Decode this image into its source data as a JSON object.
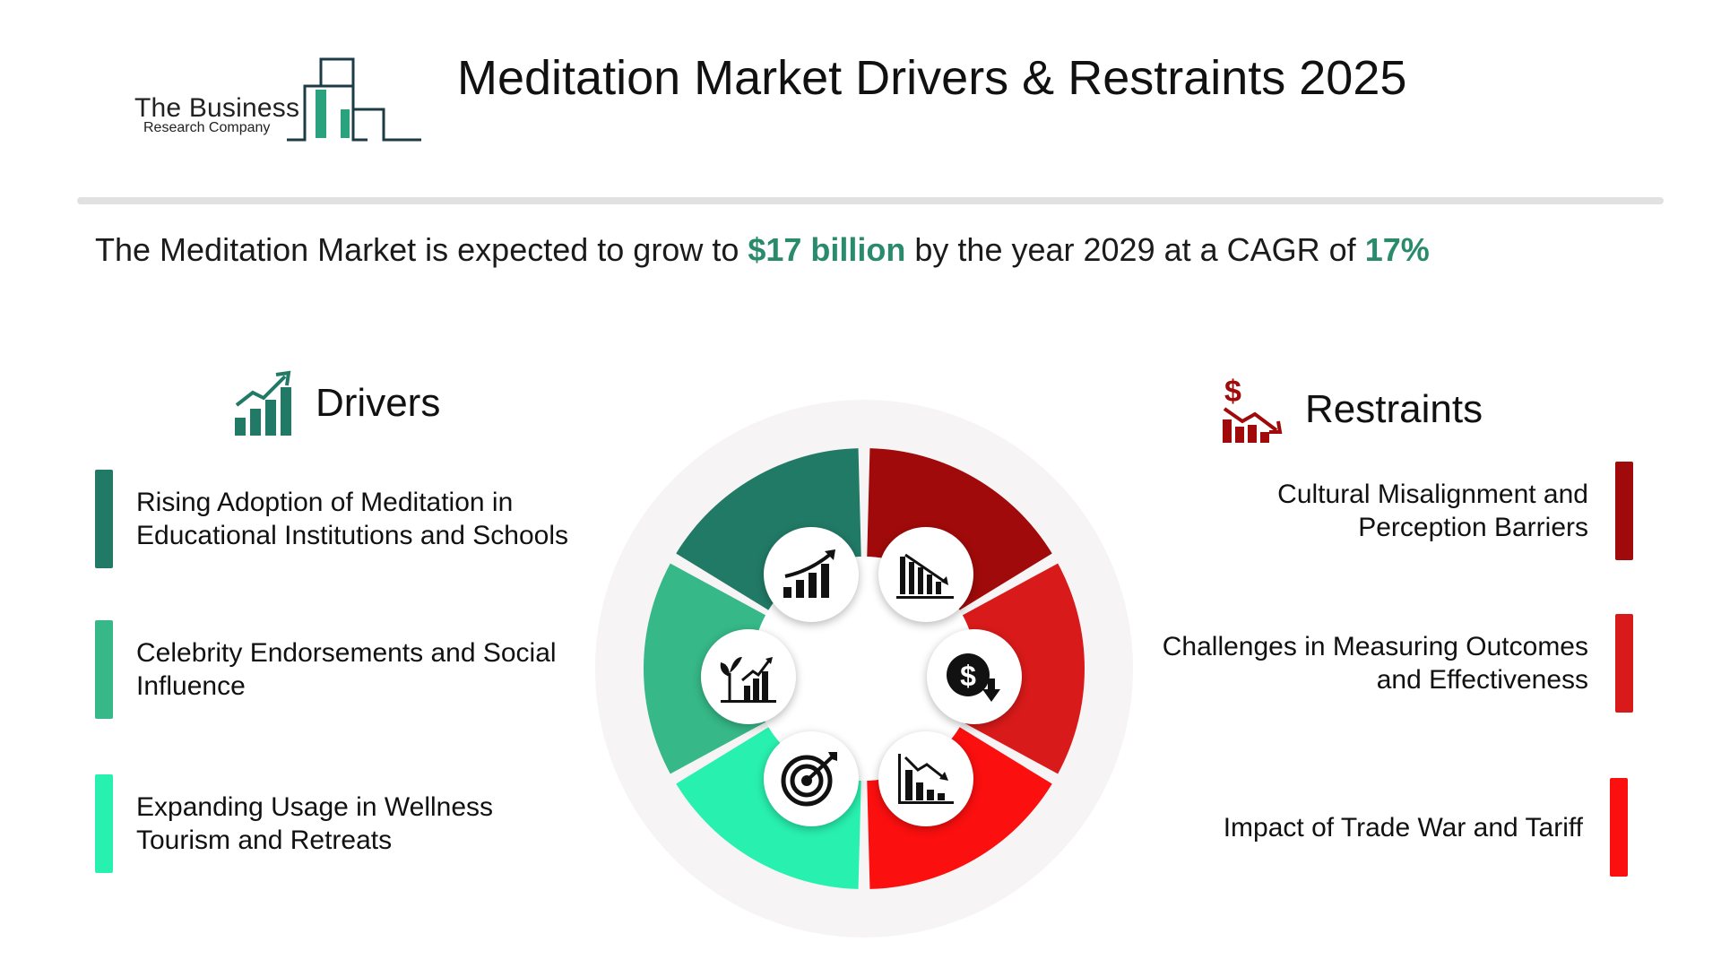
{
  "logo": {
    "line1": "The Business",
    "line2": "Research Company"
  },
  "title": "Meditation Market Drivers & Restraints 2025",
  "headline": {
    "prefix": "The Meditation Market is expected to grow to ",
    "value": "$17 billion",
    "middle": " by the year 2029 at a CAGR of  ",
    "cagr": "17%"
  },
  "drivers": {
    "title": "Drivers",
    "icon": "growth-chart-icon",
    "items": [
      {
        "text": "Rising Adoption of Meditation in Educational Institutions and Schools",
        "color": "#217a66"
      },
      {
        "text": "Celebrity Endorsements and Social Influence",
        "color": "#36b888"
      },
      {
        "text": "Expanding Usage in Wellness Tourism and Retreats",
        "color": "#28f0ae"
      }
    ]
  },
  "restraints": {
    "title": "Restraints",
    "icon": "dollar-decline-icon",
    "items": [
      {
        "text": "Cultural Misalignment and Perception Barriers",
        "color": "#a10a0a"
      },
      {
        "text": "Challenges in Measuring Outcomes and Effectiveness",
        "color": "#d91a1a"
      },
      {
        "text": "Impact of Trade War and Tariff",
        "color": "#fb0f0f"
      }
    ]
  },
  "wheel_icons": [
    "growth-bars-icon",
    "plant-growth-chart-icon",
    "target-icon",
    "declining-bars-icon",
    "dollar-down-icon",
    "decline-chart-icon"
  ],
  "colors": {
    "accent": "#2a8a6c",
    "text": "#111111",
    "divider": "#e1e1e1",
    "wheel_bg": "#f6f4f4"
  }
}
